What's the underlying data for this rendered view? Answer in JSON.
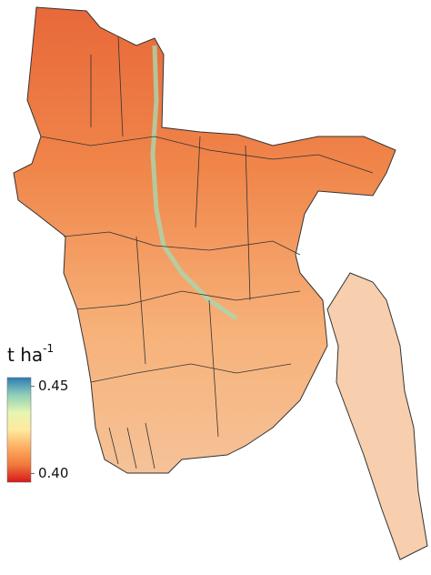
{
  "legend": {
    "title": "t ha",
    "title_superscript": "-1",
    "lim": [
      0.395,
      0.455
    ],
    "ticks": [
      0.45,
      {
        "value": 0.4,
        "label": "0.40"
      }
    ],
    "colors": [
      "#d7191c",
      "#f07a3c",
      "#fdae61",
      "#fee9a0",
      "#e6f5b0",
      "#8fd0b8",
      "#2c7bb6"
    ]
  }
}
